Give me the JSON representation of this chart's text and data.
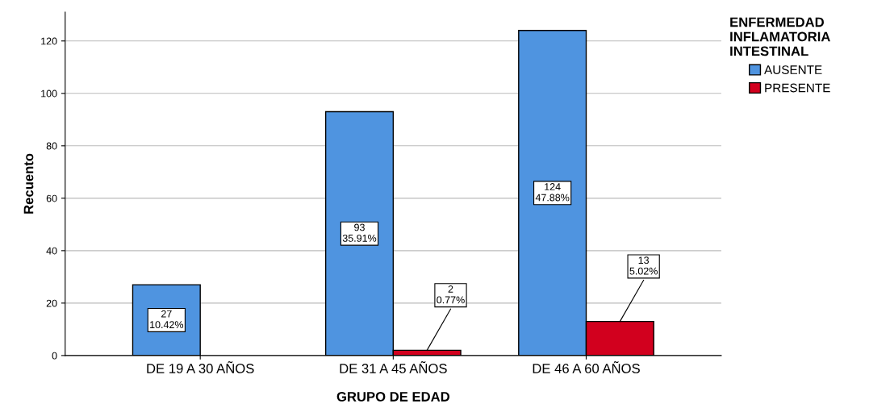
{
  "chart_data": {
    "type": "bar",
    "xlabel": "GRUPO DE EDAD",
    "ylabel": "Recuento",
    "legend_title": "ENFERMEDAD\nINFLAMATORIA\nINTESTINAL",
    "categories": [
      "DE 19 A 30 AÑOS",
      "DE 31 A 45 AÑOS",
      "DE 46 A 60 AÑOS"
    ],
    "series": [
      {
        "name": "AUSENTE",
        "color": "#4f94e0",
        "values": [
          27,
          93,
          124
        ],
        "value_labels": [
          "27\n10.42%",
          "93\n35.91%",
          "124\n47.88%"
        ]
      },
      {
        "name": "PRESENTE",
        "color": "#d2001e",
        "values": [
          null,
          2,
          13
        ],
        "value_labels": [
          null,
          "2\n0.77%",
          "13\n5.02%"
        ]
      }
    ],
    "ylim": [
      0,
      131
    ],
    "yticks": [
      0,
      20,
      40,
      60,
      80,
      100,
      120
    ],
    "grid": "y",
    "legend": "right"
  }
}
